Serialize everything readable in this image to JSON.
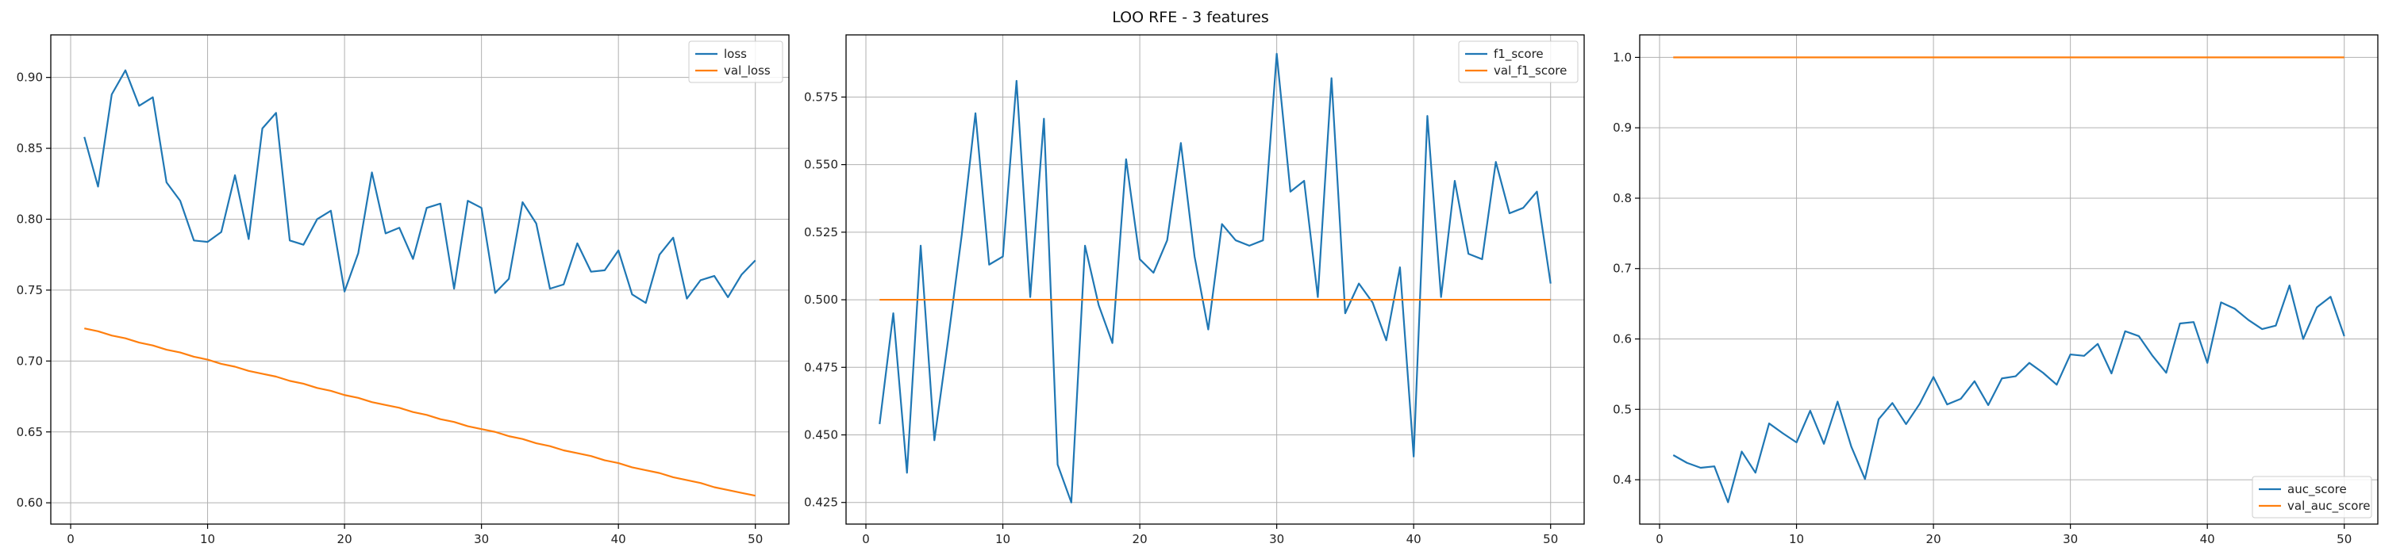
{
  "figure": {
    "suptitle": "LOO RFE - 3 features"
  },
  "colors": {
    "series_1": "#1f77b4",
    "series_2": "#ff7f0e",
    "grid": "#b0b0b0",
    "axes": "#000000"
  },
  "chart_data": [
    {
      "type": "line",
      "title": "",
      "xlabel": "",
      "ylabel": "",
      "xlim": [
        -1.45,
        52.45
      ],
      "ylim": [
        0.585,
        0.93
      ],
      "xticks": [
        0,
        10,
        20,
        30,
        40,
        50
      ],
      "yticks": [
        0.6,
        0.65,
        0.7,
        0.75,
        0.8,
        0.85,
        0.9
      ],
      "ytick_labels": [
        "0.60",
        "0.65",
        "0.70",
        "0.75",
        "0.80",
        "0.85",
        "0.90"
      ],
      "grid": true,
      "legend_position": "top-right",
      "series": [
        {
          "name": "loss",
          "x": [
            1,
            2,
            3,
            4,
            5,
            6,
            7,
            8,
            9,
            10,
            11,
            12,
            13,
            14,
            15,
            16,
            17,
            18,
            19,
            20,
            21,
            22,
            23,
            24,
            25,
            26,
            27,
            28,
            29,
            30,
            31,
            32,
            33,
            34,
            35,
            36,
            37,
            38,
            39,
            40,
            41,
            42,
            43,
            44,
            45,
            46,
            47,
            48,
            49,
            50
          ],
          "values": [
            0.858,
            0.823,
            0.888,
            0.905,
            0.88,
            0.886,
            0.826,
            0.813,
            0.785,
            0.784,
            0.791,
            0.831,
            0.786,
            0.864,
            0.875,
            0.785,
            0.782,
            0.8,
            0.806,
            0.749,
            0.776,
            0.833,
            0.79,
            0.794,
            0.772,
            0.808,
            0.811,
            0.751,
            0.813,
            0.808,
            0.748,
            0.758,
            0.812,
            0.797,
            0.751,
            0.754,
            0.783,
            0.763,
            0.764,
            0.778,
            0.747,
            0.741,
            0.775,
            0.787,
            0.744,
            0.757,
            0.76,
            0.745,
            0.761,
            0.771
          ]
        },
        {
          "name": "val_loss",
          "x": [
            1,
            2,
            3,
            4,
            5,
            6,
            7,
            8,
            9,
            10,
            11,
            12,
            13,
            14,
            15,
            16,
            17,
            18,
            19,
            20,
            21,
            22,
            23,
            24,
            25,
            26,
            27,
            28,
            29,
            30,
            31,
            32,
            33,
            34,
            35,
            36,
            37,
            38,
            39,
            40,
            41,
            42,
            43,
            44,
            45,
            46,
            47,
            48,
            49,
            50
          ],
          "values": [
            0.723,
            0.721,
            0.718,
            0.716,
            0.713,
            0.711,
            0.708,
            0.706,
            0.703,
            0.701,
            0.698,
            0.696,
            0.693,
            0.691,
            0.689,
            0.686,
            0.684,
            0.681,
            0.679,
            0.676,
            0.674,
            0.671,
            0.669,
            0.667,
            0.664,
            0.662,
            0.659,
            0.657,
            0.654,
            0.652,
            0.65,
            0.647,
            0.645,
            0.642,
            0.64,
            0.637,
            0.635,
            0.633,
            0.63,
            0.628,
            0.625,
            0.623,
            0.621,
            0.618,
            0.616,
            0.614,
            0.611,
            0.609,
            0.607,
            0.605
          ]
        }
      ]
    },
    {
      "type": "line",
      "title": "",
      "xlabel": "",
      "ylabel": "",
      "xlim": [
        -1.45,
        52.45
      ],
      "ylim": [
        0.417,
        0.598
      ],
      "xticks": [
        0,
        10,
        20,
        30,
        40,
        50
      ],
      "yticks": [
        0.425,
        0.45,
        0.475,
        0.5,
        0.525,
        0.55,
        0.575
      ],
      "ytick_labels": [
        "0.425",
        "0.450",
        "0.475",
        "0.500",
        "0.525",
        "0.550",
        "0.575"
      ],
      "grid": true,
      "legend_position": "top-right",
      "series": [
        {
          "name": "f1_score",
          "x": [
            1,
            2,
            3,
            4,
            5,
            6,
            7,
            8,
            9,
            10,
            11,
            12,
            13,
            14,
            15,
            16,
            17,
            18,
            19,
            20,
            21,
            22,
            23,
            24,
            25,
            26,
            27,
            28,
            29,
            30,
            31,
            32,
            33,
            34,
            35,
            36,
            37,
            38,
            39,
            40,
            41,
            42,
            43,
            44,
            45,
            46,
            47,
            48,
            49,
            50
          ],
          "values": [
            0.454,
            0.495,
            0.436,
            0.52,
            0.448,
            0.485,
            0.524,
            0.569,
            0.513,
            0.516,
            0.581,
            0.501,
            0.567,
            0.439,
            0.425,
            0.52,
            0.498,
            0.484,
            0.552,
            0.515,
            0.51,
            0.522,
            0.558,
            0.516,
            0.489,
            0.528,
            0.522,
            0.52,
            0.522,
            0.591,
            0.54,
            0.544,
            0.501,
            0.582,
            0.495,
            0.506,
            0.499,
            0.485,
            0.512,
            0.442,
            0.568,
            0.501,
            0.544,
            0.517,
            0.515,
            0.551,
            0.532,
            0.534,
            0.54,
            0.506
          ]
        },
        {
          "name": "val_f1_score",
          "x": [
            1,
            2,
            3,
            4,
            5,
            6,
            7,
            8,
            9,
            10,
            11,
            12,
            13,
            14,
            15,
            16,
            17,
            18,
            19,
            20,
            21,
            22,
            23,
            24,
            25,
            26,
            27,
            28,
            29,
            30,
            31,
            32,
            33,
            34,
            35,
            36,
            37,
            38,
            39,
            40,
            41,
            42,
            43,
            44,
            45,
            46,
            47,
            48,
            49,
            50
          ],
          "values": [
            0.5,
            0.5,
            0.5,
            0.5,
            0.5,
            0.5,
            0.5,
            0.5,
            0.5,
            0.5,
            0.5,
            0.5,
            0.5,
            0.5,
            0.5,
            0.5,
            0.5,
            0.5,
            0.5,
            0.5,
            0.5,
            0.5,
            0.5,
            0.5,
            0.5,
            0.5,
            0.5,
            0.5,
            0.5,
            0.5,
            0.5,
            0.5,
            0.5,
            0.5,
            0.5,
            0.5,
            0.5,
            0.5,
            0.5,
            0.5,
            0.5,
            0.5,
            0.5,
            0.5,
            0.5,
            0.5,
            0.5,
            0.5,
            0.5,
            0.5
          ]
        }
      ]
    },
    {
      "type": "line",
      "title": "",
      "xlabel": "",
      "ylabel": "",
      "xlim": [
        -1.45,
        52.45
      ],
      "ylim": [
        0.337,
        1.032
      ],
      "xticks": [
        0,
        10,
        20,
        30,
        40,
        50
      ],
      "yticks": [
        0.4,
        0.5,
        0.6,
        0.7,
        0.8,
        0.9,
        1.0
      ],
      "ytick_labels": [
        "0.4",
        "0.5",
        "0.6",
        "0.7",
        "0.8",
        "0.9",
        "1.0"
      ],
      "grid": true,
      "legend_position": "bottom-right",
      "series": [
        {
          "name": "auc_score",
          "x": [
            1,
            2,
            3,
            4,
            5,
            6,
            7,
            8,
            9,
            10,
            11,
            12,
            13,
            14,
            15,
            16,
            17,
            18,
            19,
            20,
            21,
            22,
            23,
            24,
            25,
            26,
            27,
            28,
            29,
            30,
            31,
            32,
            33,
            34,
            35,
            36,
            37,
            38,
            39,
            40,
            41,
            42,
            43,
            44,
            45,
            46,
            47,
            48,
            49,
            50
          ],
          "values": [
            0.435,
            0.424,
            0.417,
            0.419,
            0.368,
            0.44,
            0.41,
            0.48,
            0.466,
            0.453,
            0.498,
            0.451,
            0.511,
            0.447,
            0.401,
            0.486,
            0.509,
            0.479,
            0.508,
            0.546,
            0.507,
            0.515,
            0.54,
            0.506,
            0.544,
            0.547,
            0.566,
            0.552,
            0.535,
            0.578,
            0.576,
            0.593,
            0.551,
            0.611,
            0.604,
            0.576,
            0.552,
            0.622,
            0.624,
            0.566,
            0.652,
            0.643,
            0.627,
            0.614,
            0.619,
            0.676,
            0.6,
            0.645,
            0.66,
            0.604
          ]
        },
        {
          "name": "val_auc_score",
          "x": [
            1,
            2,
            3,
            4,
            5,
            6,
            7,
            8,
            9,
            10,
            11,
            12,
            13,
            14,
            15,
            16,
            17,
            18,
            19,
            20,
            21,
            22,
            23,
            24,
            25,
            26,
            27,
            28,
            29,
            30,
            31,
            32,
            33,
            34,
            35,
            36,
            37,
            38,
            39,
            40,
            41,
            42,
            43,
            44,
            45,
            46,
            47,
            48,
            49,
            50
          ],
          "values": [
            1.0,
            1.0,
            1.0,
            1.0,
            1.0,
            1.0,
            1.0,
            1.0,
            1.0,
            1.0,
            1.0,
            1.0,
            1.0,
            1.0,
            1.0,
            1.0,
            1.0,
            1.0,
            1.0,
            1.0,
            1.0,
            1.0,
            1.0,
            1.0,
            1.0,
            1.0,
            1.0,
            1.0,
            1.0,
            1.0,
            1.0,
            1.0,
            1.0,
            1.0,
            1.0,
            1.0,
            1.0,
            1.0,
            1.0,
            1.0,
            1.0,
            1.0,
            1.0,
            1.0,
            1.0,
            1.0,
            1.0,
            1.0,
            1.0,
            1.0
          ]
        }
      ]
    }
  ]
}
